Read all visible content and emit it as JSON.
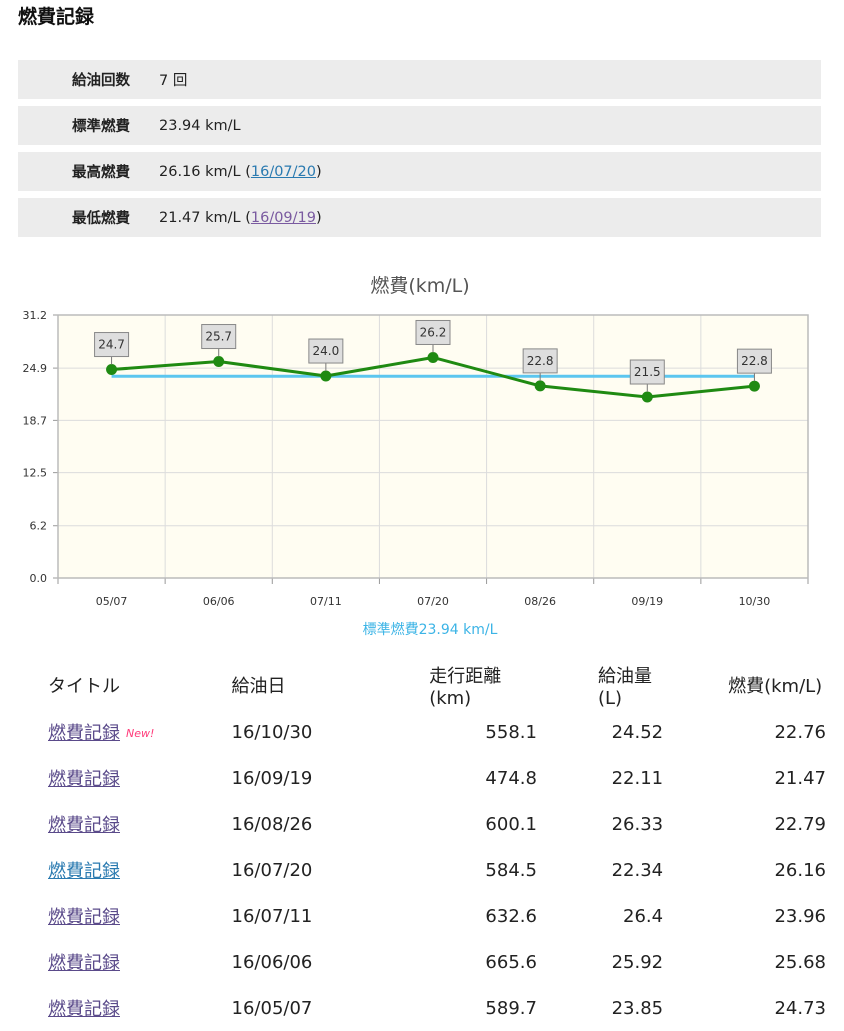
{
  "page": {
    "title": "燃費記録"
  },
  "summary": [
    {
      "label": "給油回数",
      "value": "7 回"
    },
    {
      "label": "標準燃費",
      "value": "23.94 km/L"
    },
    {
      "label": "最高燃費",
      "value": "26.16 km/L (",
      "link": "16/07/20",
      "suffix": ")"
    },
    {
      "label": "最低燃費",
      "value": "21.47 km/L (",
      "link": "16/09/19",
      "suffix": ")"
    }
  ],
  "chart_data": {
    "type": "line",
    "title": "燃費(km/L)",
    "categories": [
      "05/07",
      "06/06",
      "07/11",
      "07/20",
      "08/26",
      "09/19",
      "10/30"
    ],
    "series": [
      {
        "values": [
          24.73,
          25.68,
          23.96,
          26.16,
          22.79,
          21.47,
          22.76
        ],
        "labels": [
          "24.7",
          "25.7",
          "24.0",
          "26.2",
          "22.8",
          "21.5",
          "22.8"
        ],
        "color": "#1f8a12"
      },
      {
        "name": "標準燃費23.94 km/L",
        "values": [
          23.94,
          23.94,
          23.94,
          23.94,
          23.94,
          23.94,
          23.94
        ],
        "color": "#5cc6ef"
      }
    ],
    "yticks": [
      "0.0",
      "6.2",
      "12.5",
      "18.7",
      "24.9",
      "31.2"
    ],
    "ylim": [
      0,
      31.2
    ],
    "grid": true,
    "legend": "bottom",
    "plot_background": "#fffdf2"
  },
  "table": {
    "headers": [
      "タイトル",
      "給油日",
      "走行距離(km)",
      "給油量(L)",
      "燃費(km/L)"
    ],
    "new_badge": "New!",
    "rows": [
      {
        "title": "燃費記録",
        "date": "16/10/30",
        "distance": "558.1",
        "fuel": "24.52",
        "efficiency": "22.76"
      },
      {
        "title": "燃費記録",
        "date": "16/09/19",
        "distance": "474.8",
        "fuel": "22.11",
        "efficiency": "21.47"
      },
      {
        "title": "燃費記録",
        "date": "16/08/26",
        "distance": "600.1",
        "fuel": "26.33",
        "efficiency": "22.79"
      },
      {
        "title": "燃費記録",
        "date": "16/07/20",
        "distance": "584.5",
        "fuel": "22.34",
        "efficiency": "26.16"
      },
      {
        "title": "燃費記録",
        "date": "16/07/11",
        "distance": "632.6",
        "fuel": "26.4",
        "efficiency": "23.96"
      },
      {
        "title": "燃費記録",
        "date": "16/06/06",
        "distance": "665.6",
        "fuel": "25.92",
        "efficiency": "25.68"
      },
      {
        "title": "燃費記録",
        "date": "16/05/07",
        "distance": "589.7",
        "fuel": "23.85",
        "efficiency": "24.73"
      }
    ]
  }
}
